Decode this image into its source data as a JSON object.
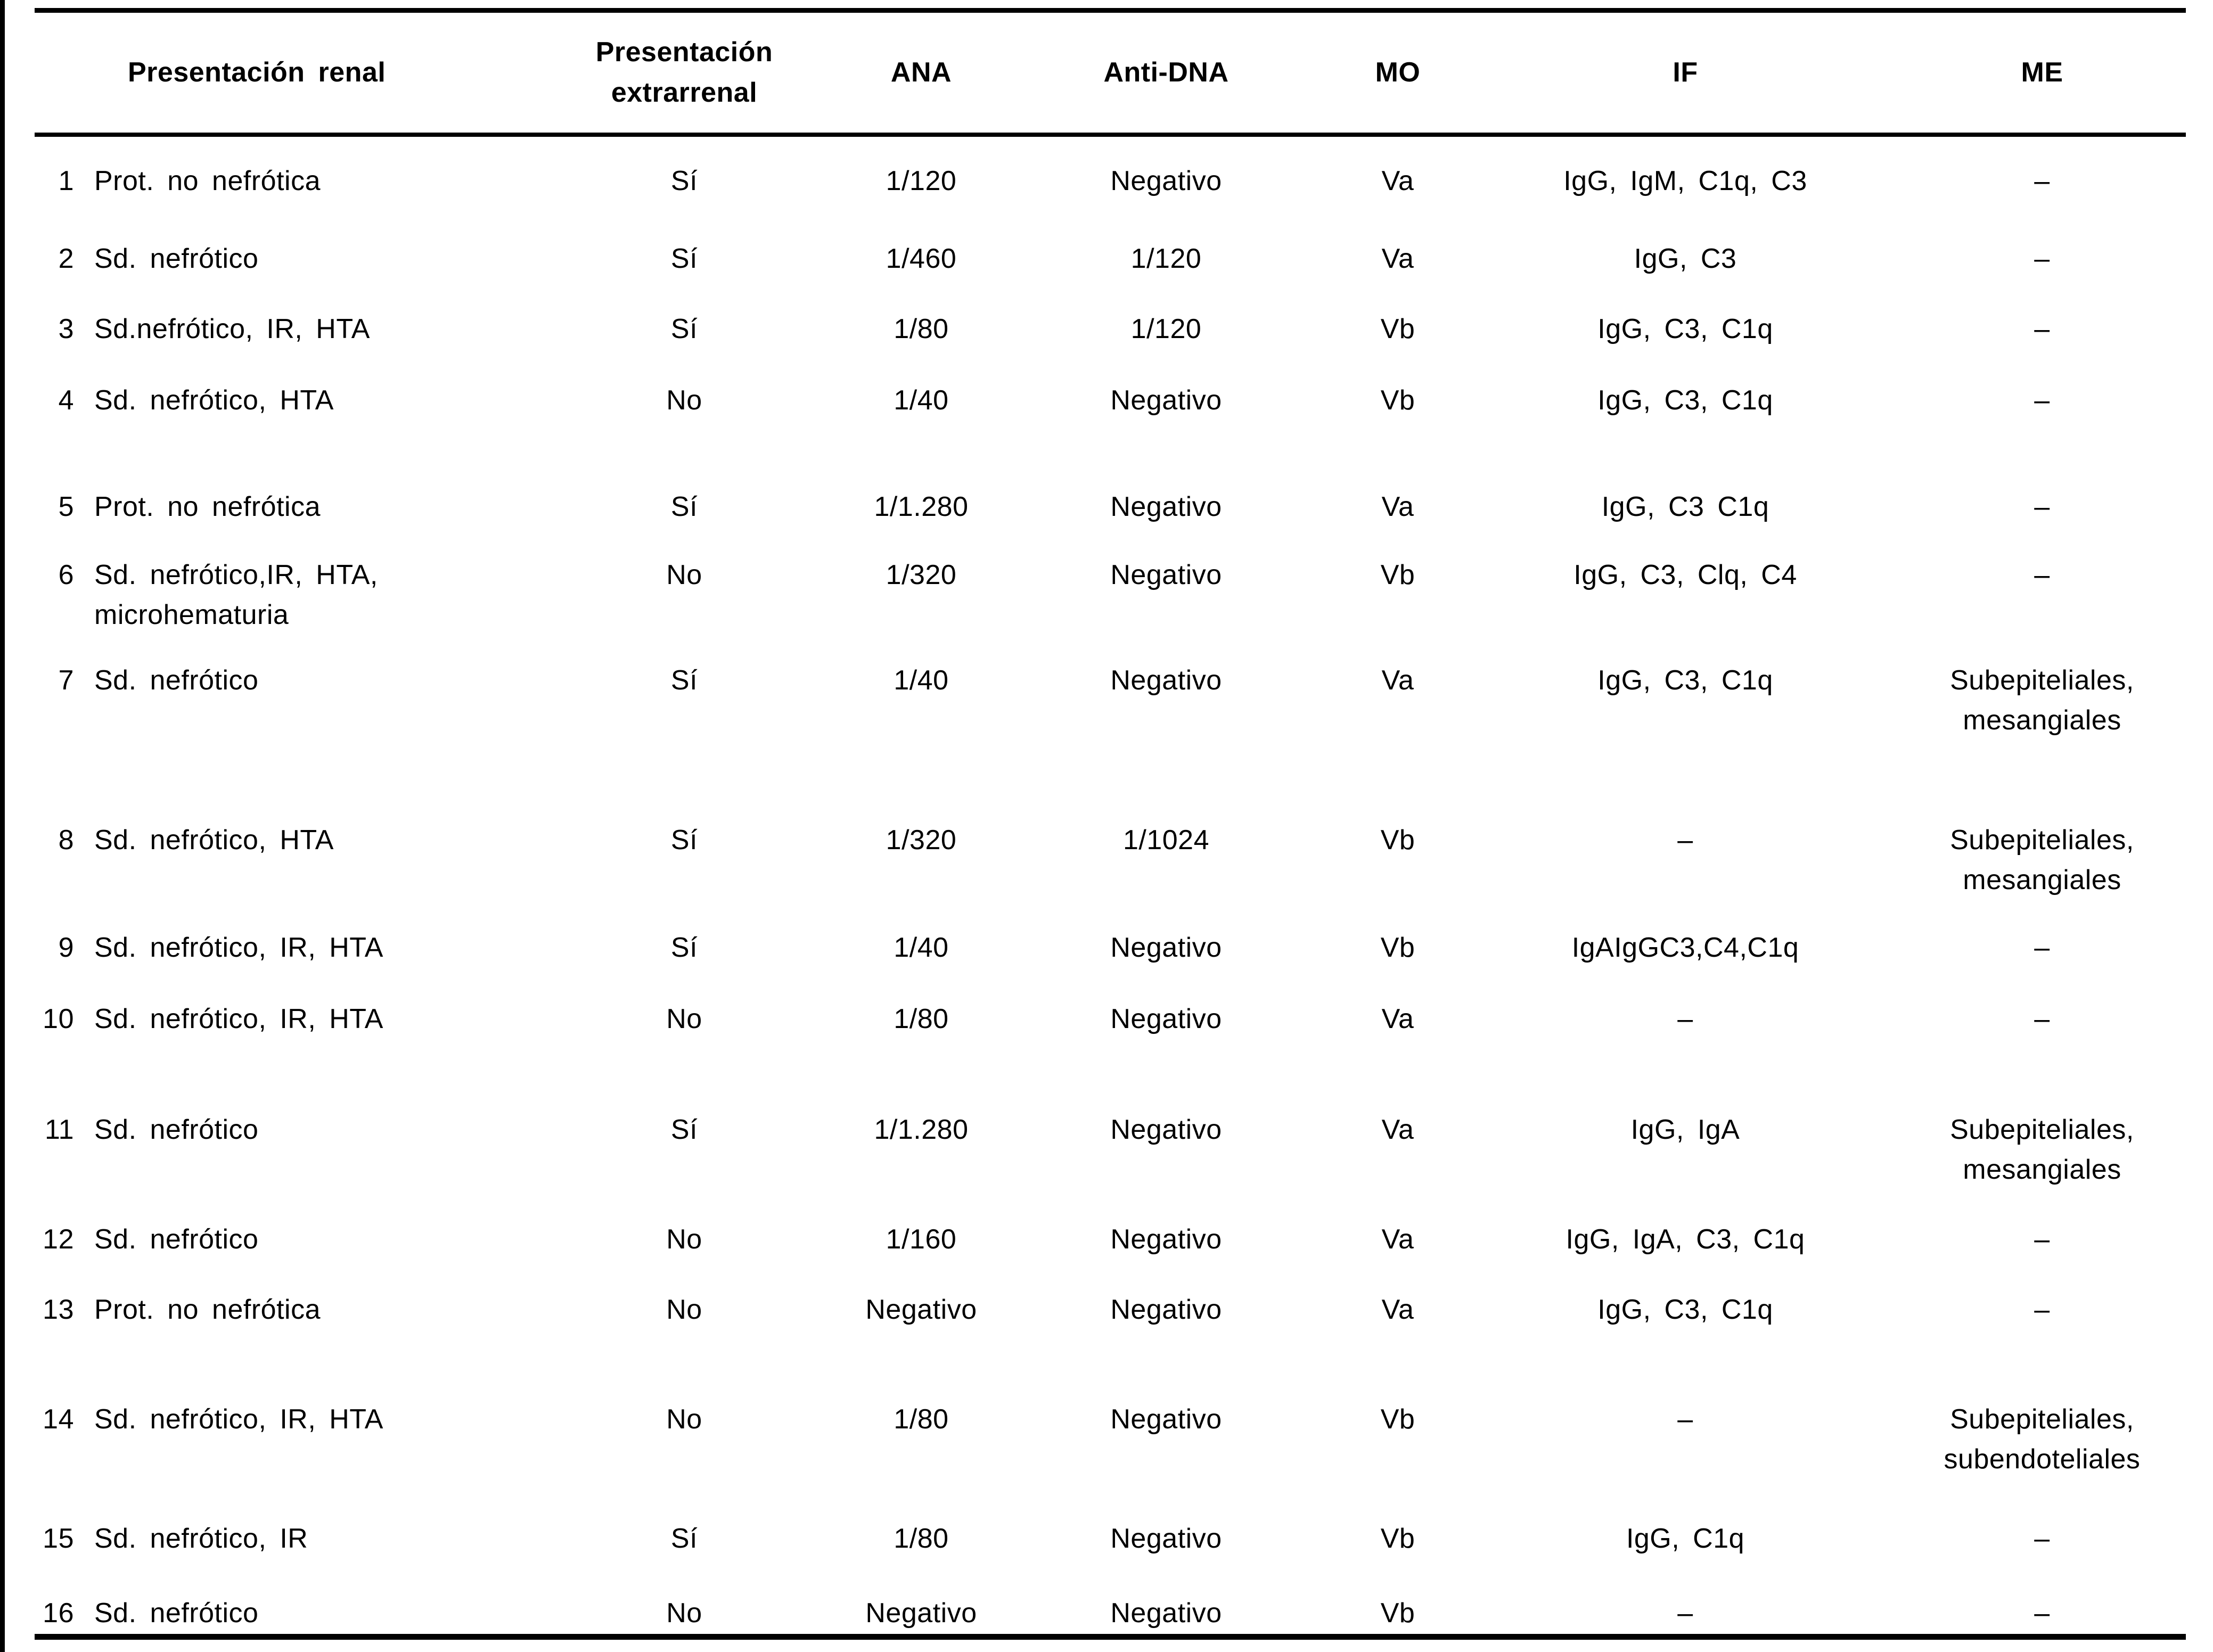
{
  "page": {
    "background": "#ffffff",
    "text_color": "#000000"
  },
  "table": {
    "columns": [
      "",
      "Presentación renal",
      "Presentación extrarrenal",
      "ANA",
      "Anti-DNA",
      "MO",
      "IF",
      "ME"
    ],
    "rows": [
      {
        "num": "1",
        "renal": "Prot. no nefrótica",
        "extrarrenal": "Sí",
        "ana": "1/120",
        "anti_dna": "Negativo",
        "mo": "Va",
        "if": "IgG, IgM, C1q, C3",
        "me": "–"
      },
      {
        "num": "2",
        "renal": "Sd. nefrótico",
        "extrarrenal": "Sí",
        "ana": "1/460",
        "anti_dna": "1/120",
        "mo": "Va",
        "if": "IgG, C3",
        "me": "–"
      },
      {
        "num": "3",
        "renal": "Sd.nefrótico, IR, HTA",
        "extrarrenal": "Sí",
        "ana": "1/80",
        "anti_dna": "1/120",
        "mo": "Vb",
        "if": "IgG, C3, C1q",
        "me": "–"
      },
      {
        "num": "4",
        "renal": "Sd. nefrótico, HTA",
        "extrarrenal": "No",
        "ana": "1/40",
        "anti_dna": "Negativo",
        "mo": "Vb",
        "if": "IgG, C3, C1q",
        "me": "–"
      },
      {
        "num": "5",
        "renal": "Prot. no nefrótica",
        "extrarrenal": "Sí",
        "ana": "1/1.280",
        "anti_dna": "Negativo",
        "mo": "Va",
        "if": "IgG, C3 C1q",
        "me": "–"
      },
      {
        "num": "6",
        "renal": "Sd. nefrótico,IR, HTA, microhematuria",
        "extrarrenal": "No",
        "ana": "1/320",
        "anti_dna": "Negativo",
        "mo": "Vb",
        "if": "IgG, C3, Clq, C4",
        "me": "–"
      },
      {
        "num": "7",
        "renal": "Sd. nefrótico",
        "extrarrenal": "Sí",
        "ana": "1/40",
        "anti_dna": "Negativo",
        "mo": "Va",
        "if": "IgG, C3, C1q",
        "me": "Subepiteliales, mesangiales"
      },
      {
        "num": "8",
        "renal": "Sd. nefrótico, HTA",
        "extrarrenal": "Sí",
        "ana": "1/320",
        "anti_dna": "1/1024",
        "mo": "Vb",
        "if": "–",
        "me": "Subepiteliales, mesangiales"
      },
      {
        "num": "9",
        "renal": "Sd. nefrótico, IR, HTA",
        "extrarrenal": "Sí",
        "ana": "1/40",
        "anti_dna": "Negativo",
        "mo": "Vb",
        "if": "IgAIgGC3,C4,C1q",
        "me": "–"
      },
      {
        "num": "10",
        "renal": "Sd. nefrótico, IR, HTA",
        "extrarrenal": "No",
        "ana": "1/80",
        "anti_dna": "Negativo",
        "mo": "Va",
        "if": "–",
        "me": "–"
      },
      {
        "num": "11",
        "renal": "Sd. nefrótico",
        "extrarrenal": "Sí",
        "ana": "1/1.280",
        "anti_dna": "Negativo",
        "mo": "Va",
        "if": "IgG, IgA",
        "me": "Subepiteliales, mesangiales"
      },
      {
        "num": "12",
        "renal": "Sd. nefrótico",
        "extrarrenal": "No",
        "ana": "1/160",
        "anti_dna": "Negativo",
        "mo": "Va",
        "if": "IgG, IgA, C3, C1q",
        "me": "–"
      },
      {
        "num": "13",
        "renal": "Prot. no nefrótica",
        "extrarrenal": "No",
        "ana": "Negativo",
        "anti_dna": "Negativo",
        "mo": "Va",
        "if": "IgG, C3, C1q",
        "me": "–"
      },
      {
        "num": "14",
        "renal": "Sd. nefrótico, IR, HTA",
        "extrarrenal": "No",
        "ana": "1/80",
        "anti_dna": "Negativo",
        "mo": "Vb",
        "if": "–",
        "me": "Subepiteliales, subendoteliales"
      },
      {
        "num": "15",
        "renal": "Sd. nefrótico, IR",
        "extrarrenal": "Sí",
        "ana": "1/80",
        "anti_dna": "Negativo",
        "mo": "Vb",
        "if": "IgG, C1q",
        "me": "–"
      },
      {
        "num": "16",
        "renal": "Sd. nefrótico",
        "extrarrenal": "No",
        "ana": "Negativo",
        "anti_dna": "Negativo",
        "mo": "Vb",
        "if": "–",
        "me": "–"
      }
    ]
  }
}
